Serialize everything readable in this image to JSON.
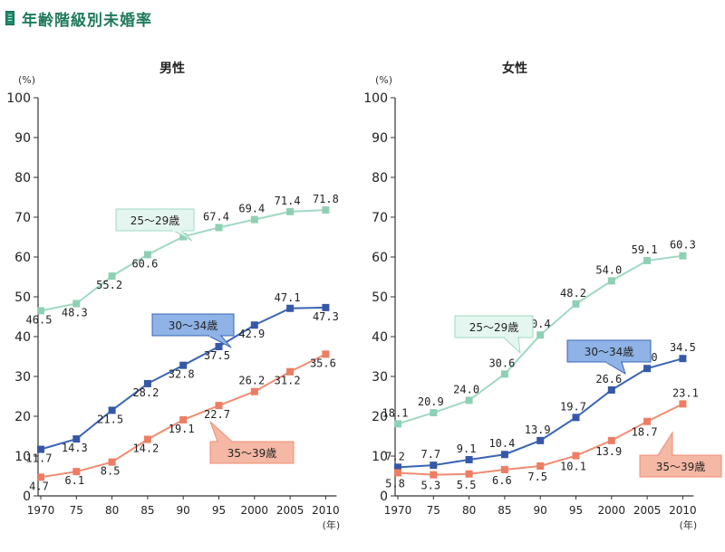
{
  "header": {
    "title": "年齢階級別未婚率"
  },
  "colors": {
    "s25": "#9fd9c2",
    "s25_marker": "#8fd0b5",
    "s30": "#3b64b5",
    "s30_marker": "#3658a8",
    "s35": "#f08c72",
    "s35_marker": "#ec7e63",
    "callout_s25_fill": "#e4f6ef",
    "callout_s30_fill": "#8fb3e6",
    "callout_s35_fill": "#f5b8a5"
  },
  "chart_data": [
    {
      "type": "line",
      "title": "男性",
      "y_unit": "(%)",
      "x_unit": "(年)",
      "categories": [
        "1970",
        "75",
        "80",
        "85",
        "90",
        "95",
        "2000",
        "2005",
        "2010"
      ],
      "ylim": [
        0,
        100
      ],
      "yticks": [
        0,
        10,
        20,
        30,
        40,
        50,
        60,
        70,
        80,
        90,
        100
      ],
      "grid": false,
      "series": [
        {
          "name": "25～29歳",
          "key": "s25",
          "values": [
            46.5,
            48.3,
            55.2,
            60.6,
            65.1,
            67.4,
            69.4,
            71.4,
            71.8
          ],
          "labels": [
            "46.5",
            "48.3",
            "55.2",
            "60.6",
            "65.1",
            "67.4",
            "69.4",
            "71.4",
            "71.8"
          ]
        },
        {
          "name": "30～34歳",
          "key": "s30",
          "values": [
            11.7,
            14.3,
            21.5,
            28.2,
            32.8,
            37.5,
            42.9,
            47.1,
            47.3
          ],
          "labels": [
            "11.7",
            "14.3",
            "21.5",
            "28.2",
            "32.8",
            "37.5",
            "42.9",
            "47.1",
            "47.3"
          ]
        },
        {
          "name": "35～39歳",
          "key": "s35",
          "values": [
            4.7,
            6.1,
            8.5,
            14.2,
            19.1,
            22.7,
            26.2,
            31.2,
            35.6
          ],
          "labels": [
            "4.7",
            "6.1",
            "8.5",
            "14.2",
            "19.1",
            "22.7",
            "26.2",
            "31.2",
            "35.6"
          ]
        }
      ]
    },
    {
      "type": "line",
      "title": "女性",
      "y_unit": "(%)",
      "x_unit": "(年)",
      "categories": [
        "1970",
        "75",
        "80",
        "85",
        "90",
        "95",
        "2000",
        "2005",
        "2010"
      ],
      "ylim": [
        0,
        100
      ],
      "yticks": [
        0,
        10,
        20,
        30,
        40,
        50,
        60,
        70,
        80,
        90,
        100
      ],
      "grid": false,
      "series": [
        {
          "name": "25～29歳",
          "key": "s25",
          "values": [
            18.1,
            20.9,
            24.0,
            30.6,
            40.4,
            48.2,
            54.0,
            59.1,
            60.3
          ],
          "labels": [
            "18.1",
            "20.9",
            "24.0",
            "30.6",
            "40.4",
            "48.2",
            "54.0",
            "59.1",
            "60.3"
          ]
        },
        {
          "name": "30～34歳",
          "key": "s30",
          "values": [
            7.2,
            7.7,
            9.1,
            10.4,
            13.9,
            19.7,
            26.6,
            32.0,
            34.5
          ],
          "labels": [
            "7.2",
            "7.7",
            "9.1",
            "10.4",
            "13.9",
            "19.7",
            "26.6",
            "32.0",
            "34.5"
          ]
        },
        {
          "name": "35～39歳",
          "key": "s35",
          "values": [
            5.8,
            5.3,
            5.5,
            6.6,
            7.5,
            10.1,
            13.9,
            18.7,
            23.1
          ],
          "labels": [
            "5.8",
            "5.3",
            "5.5",
            "6.6",
            "7.5",
            "10.1",
            "13.9",
            "18.7",
            "23.1"
          ]
        }
      ]
    }
  ]
}
